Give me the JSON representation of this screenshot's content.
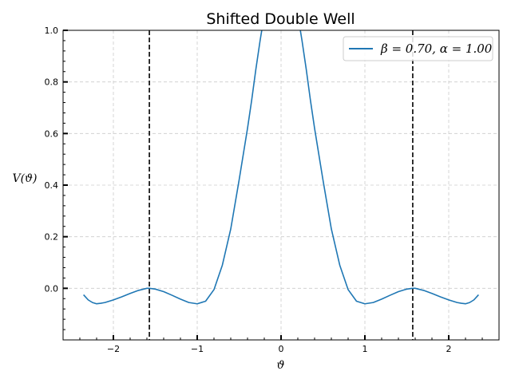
{
  "chart_data": {
    "type": "line",
    "title": "Shifted Double Well",
    "xlabel": "ϑ",
    "ylabel": "V(ϑ)",
    "xlim": [
      -2.6,
      2.6
    ],
    "ylim": [
      -0.2,
      1.0
    ],
    "xticks": [
      -2,
      -1,
      0,
      1,
      2
    ],
    "xtick_labels": [
      "−2",
      "−1",
      "0",
      "1",
      "2"
    ],
    "yticks": [
      0.0,
      0.2,
      0.4,
      0.6,
      0.8,
      1.0
    ],
    "ytick_labels": [
      "0.0",
      "0.2",
      "0.4",
      "0.6",
      "0.8",
      "1.0"
    ],
    "grid": true,
    "legend_position": "top-right",
    "vertical_lines": [
      -1.5708,
      1.5708
    ],
    "series": [
      {
        "name": "β = 0.70, α = 1.00",
        "color": "#1f77b4",
        "x": [
          -2.356,
          -2.3,
          -2.25,
          -2.2,
          -2.15,
          -2.1,
          -2.0,
          -1.9,
          -1.8,
          -1.7,
          -1.6,
          -1.5708,
          -1.5,
          -1.4,
          -1.3,
          -1.2,
          -1.1,
          -1.0,
          -0.9,
          -0.8,
          -0.7,
          -0.6,
          -0.5,
          -0.4,
          -0.35,
          -0.3,
          -0.25,
          -0.22,
          -0.2,
          0.2,
          0.22,
          0.25,
          0.3,
          0.35,
          0.4,
          0.5,
          0.6,
          0.7,
          0.8,
          0.9,
          1.0,
          1.1,
          1.2,
          1.3,
          1.4,
          1.5,
          1.5708,
          1.6,
          1.7,
          1.8,
          1.9,
          2.0,
          2.1,
          2.15,
          2.2,
          2.25,
          2.3,
          2.356
        ],
        "y": [
          -0.025,
          -0.045,
          -0.055,
          -0.06,
          -0.058,
          -0.055,
          -0.045,
          -0.033,
          -0.02,
          -0.008,
          0.0,
          0.0,
          -0.003,
          -0.013,
          -0.027,
          -0.042,
          -0.055,
          -0.06,
          -0.05,
          -0.005,
          0.09,
          0.23,
          0.42,
          0.62,
          0.73,
          0.85,
          0.96,
          1.02,
          1.06,
          1.06,
          1.02,
          0.96,
          0.85,
          0.73,
          0.62,
          0.42,
          0.23,
          0.09,
          -0.005,
          -0.05,
          -0.06,
          -0.055,
          -0.042,
          -0.027,
          -0.013,
          -0.003,
          0.0,
          0.0,
          -0.008,
          -0.02,
          -0.033,
          -0.045,
          -0.055,
          -0.058,
          -0.06,
          -0.055,
          -0.045,
          -0.025
        ]
      }
    ]
  }
}
